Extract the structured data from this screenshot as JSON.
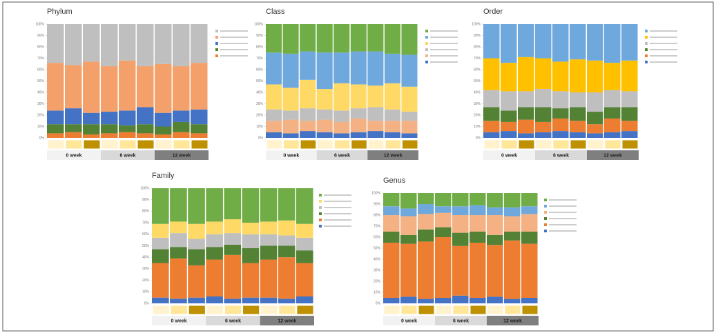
{
  "chart_data": [
    {
      "type": "bar",
      "stacked": true,
      "title": "Phylum",
      "categories": [
        null,
        null,
        null,
        null,
        null,
        null,
        null,
        null,
        null
      ],
      "groups": [
        "0 week",
        "6 week",
        "12 week"
      ],
      "ylim": [
        0,
        100
      ],
      "yticks": [
        {
          "value": 0,
          "label": "0%"
        },
        {
          "value": 10,
          "label": "10%"
        },
        {
          "value": 20,
          "label": "20%"
        },
        {
          "value": 30,
          "label": "30%"
        },
        {
          "value": 40,
          "label": "40%"
        },
        {
          "value": 50,
          "label": "50%"
        },
        {
          "value": 60,
          "label": "60%"
        },
        {
          "value": 70,
          "label": "70%"
        },
        {
          "value": 80,
          "label": "80%"
        },
        {
          "value": 90,
          "label": "90%"
        },
        {
          "value": 100,
          "label": "100%"
        }
      ],
      "series": [
        {
          "color": "#ed7d31",
          "values": [
            4,
            5,
            3,
            4,
            5,
            4,
            3,
            5,
            4
          ]
        },
        {
          "color": "#548235",
          "values": [
            8,
            7,
            9,
            8,
            6,
            8,
            7,
            9,
            8
          ]
        },
        {
          "color": "#4472c4",
          "values": [
            12,
            14,
            10,
            11,
            13,
            15,
            12,
            10,
            13
          ]
        },
        {
          "color": "#f4a06a",
          "values": [
            42,
            38,
            45,
            40,
            44,
            36,
            43,
            39,
            41
          ]
        },
        {
          "color": "#bfbfbf",
          "values": [
            34,
            36,
            33,
            37,
            32,
            37,
            35,
            37,
            34
          ]
        }
      ]
    },
    {
      "type": "bar",
      "stacked": true,
      "title": "Class",
      "categories": [
        null,
        null,
        null,
        null,
        null,
        null,
        null,
        null,
        null
      ],
      "groups": [
        "0 week",
        "6 week",
        "12 week"
      ],
      "ylim": [
        0,
        100
      ],
      "yticks": [
        {
          "value": 0,
          "label": "0%"
        },
        {
          "value": 10,
          "label": "10%"
        },
        {
          "value": 20,
          "label": "20%"
        },
        {
          "value": 30,
          "label": "30%"
        },
        {
          "value": 40,
          "label": "40%"
        },
        {
          "value": 50,
          "label": "50%"
        },
        {
          "value": 60,
          "label": "60%"
        },
        {
          "value": 70,
          "label": "70%"
        },
        {
          "value": 80,
          "label": "80%"
        },
        {
          "value": 90,
          "label": "90%"
        },
        {
          "value": 100,
          "label": "100%"
        }
      ],
      "series": [
        {
          "color": "#4472c4",
          "values": [
            5,
            4,
            6,
            5,
            4,
            5,
            6,
            5,
            4
          ]
        },
        {
          "color": "#f4b183",
          "values": [
            10,
            12,
            9,
            11,
            10,
            12,
            9,
            10,
            11
          ]
        },
        {
          "color": "#bfbfbf",
          "values": [
            10,
            8,
            11,
            9,
            10,
            9,
            12,
            10,
            8
          ]
        },
        {
          "color": "#ffd966",
          "values": [
            22,
            20,
            25,
            18,
            24,
            21,
            19,
            23,
            22
          ]
        },
        {
          "color": "#6fa8dc",
          "values": [
            28,
            30,
            25,
            32,
            27,
            29,
            30,
            26,
            28
          ]
        },
        {
          "color": "#70ad47",
          "values": [
            25,
            26,
            24,
            25,
            25,
            24,
            24,
            26,
            27
          ]
        }
      ]
    },
    {
      "type": "bar",
      "stacked": true,
      "title": "Order",
      "categories": [
        null,
        null,
        null,
        null,
        null,
        null,
        null,
        null,
        null
      ],
      "groups": [
        "0 week",
        "6 week",
        "12 week"
      ],
      "ylim": [
        0,
        100
      ],
      "yticks": [
        {
          "value": 0,
          "label": "0%"
        },
        {
          "value": 10,
          "label": "10%"
        },
        {
          "value": 20,
          "label": "20%"
        },
        {
          "value": 30,
          "label": "30%"
        },
        {
          "value": 40,
          "label": "40%"
        },
        {
          "value": 50,
          "label": "50%"
        },
        {
          "value": 60,
          "label": "60%"
        },
        {
          "value": 70,
          "label": "70%"
        },
        {
          "value": 80,
          "label": "80%"
        },
        {
          "value": 90,
          "label": "90%"
        },
        {
          "value": 100,
          "label": "100%"
        }
      ],
      "series": [
        {
          "color": "#4472c4",
          "values": [
            5,
            6,
            4,
            5,
            6,
            5,
            4,
            5,
            6
          ]
        },
        {
          "color": "#ed7d31",
          "values": [
            10,
            8,
            12,
            9,
            11,
            10,
            8,
            12,
            9
          ]
        },
        {
          "color": "#548235",
          "values": [
            12,
            10,
            11,
            13,
            9,
            12,
            11,
            10,
            12
          ]
        },
        {
          "color": "#bfbfbf",
          "values": [
            15,
            17,
            14,
            16,
            15,
            13,
            17,
            15,
            14
          ]
        },
        {
          "color": "#ffc000",
          "values": [
            28,
            25,
            30,
            27,
            26,
            29,
            28,
            24,
            27
          ]
        },
        {
          "color": "#6fa8dc",
          "values": [
            30,
            34,
            29,
            30,
            33,
            31,
            32,
            34,
            32
          ]
        }
      ]
    },
    {
      "type": "bar",
      "stacked": true,
      "title": "Family",
      "categories": [
        null,
        null,
        null,
        null,
        null,
        null,
        null,
        null,
        null
      ],
      "groups": [
        "0 week",
        "6 week",
        "12 week"
      ],
      "ylim": [
        0,
        100
      ],
      "yticks": [
        {
          "value": 0,
          "label": "0%"
        },
        {
          "value": 10,
          "label": "10%"
        },
        {
          "value": 20,
          "label": "20%"
        },
        {
          "value": 30,
          "label": "30%"
        },
        {
          "value": 40,
          "label": "40%"
        },
        {
          "value": 50,
          "label": "50%"
        },
        {
          "value": 60,
          "label": "60%"
        },
        {
          "value": 70,
          "label": "70%"
        },
        {
          "value": 80,
          "label": "80%"
        },
        {
          "value": 90,
          "label": "90%"
        },
        {
          "value": 100,
          "label": "100%"
        }
      ],
      "series": [
        {
          "color": "#4472c4",
          "values": [
            5,
            4,
            5,
            6,
            4,
            5,
            5,
            4,
            6
          ]
        },
        {
          "color": "#ed7d31",
          "values": [
            30,
            35,
            28,
            32,
            38,
            30,
            33,
            36,
            29
          ]
        },
        {
          "color": "#548235",
          "values": [
            12,
            10,
            14,
            11,
            9,
            13,
            12,
            10,
            11
          ]
        },
        {
          "color": "#bfbfbf",
          "values": [
            10,
            12,
            9,
            11,
            10,
            12,
            10,
            9,
            11
          ]
        },
        {
          "color": "#ffd966",
          "values": [
            12,
            10,
            13,
            11,
            12,
            10,
            11,
            13,
            12
          ]
        },
        {
          "color": "#70ad47",
          "values": [
            31,
            29,
            31,
            29,
            27,
            30,
            29,
            28,
            31
          ]
        }
      ]
    },
    {
      "type": "bar",
      "stacked": true,
      "title": "Genus",
      "categories": [
        null,
        null,
        null,
        null,
        null,
        null,
        null,
        null,
        null
      ],
      "groups": [
        "0 week",
        "6 week",
        "12 week"
      ],
      "ylim": [
        0,
        100
      ],
      "yticks": [
        {
          "value": 0,
          "label": "0%"
        },
        {
          "value": 10,
          "label": "10%"
        },
        {
          "value": 20,
          "label": "20%"
        },
        {
          "value": 30,
          "label": "30%"
        },
        {
          "value": 40,
          "label": "40%"
        },
        {
          "value": 50,
          "label": "50%"
        },
        {
          "value": 60,
          "label": "60%"
        },
        {
          "value": 70,
          "label": "70%"
        },
        {
          "value": 80,
          "label": "80%"
        },
        {
          "value": 90,
          "label": "90%"
        },
        {
          "value": 100,
          "label": "100%"
        }
      ],
      "series": [
        {
          "color": "#4472c4",
          "values": [
            5,
            6,
            4,
            5,
            7,
            5,
            6,
            4,
            5
          ]
        },
        {
          "color": "#ed7d31",
          "values": [
            50,
            48,
            52,
            55,
            45,
            50,
            47,
            53,
            49
          ]
        },
        {
          "color": "#548235",
          "values": [
            10,
            8,
            11,
            9,
            12,
            10,
            9,
            8,
            11
          ]
        },
        {
          "color": "#f4b183",
          "values": [
            15,
            17,
            14,
            13,
            16,
            15,
            18,
            14,
            16
          ]
        },
        {
          "color": "#6fa8dc",
          "values": [
            8,
            7,
            9,
            6,
            8,
            9,
            7,
            8,
            7
          ]
        },
        {
          "color": "#70ad47",
          "values": [
            12,
            14,
            10,
            12,
            12,
            11,
            13,
            13,
            12
          ]
        }
      ]
    }
  ]
}
